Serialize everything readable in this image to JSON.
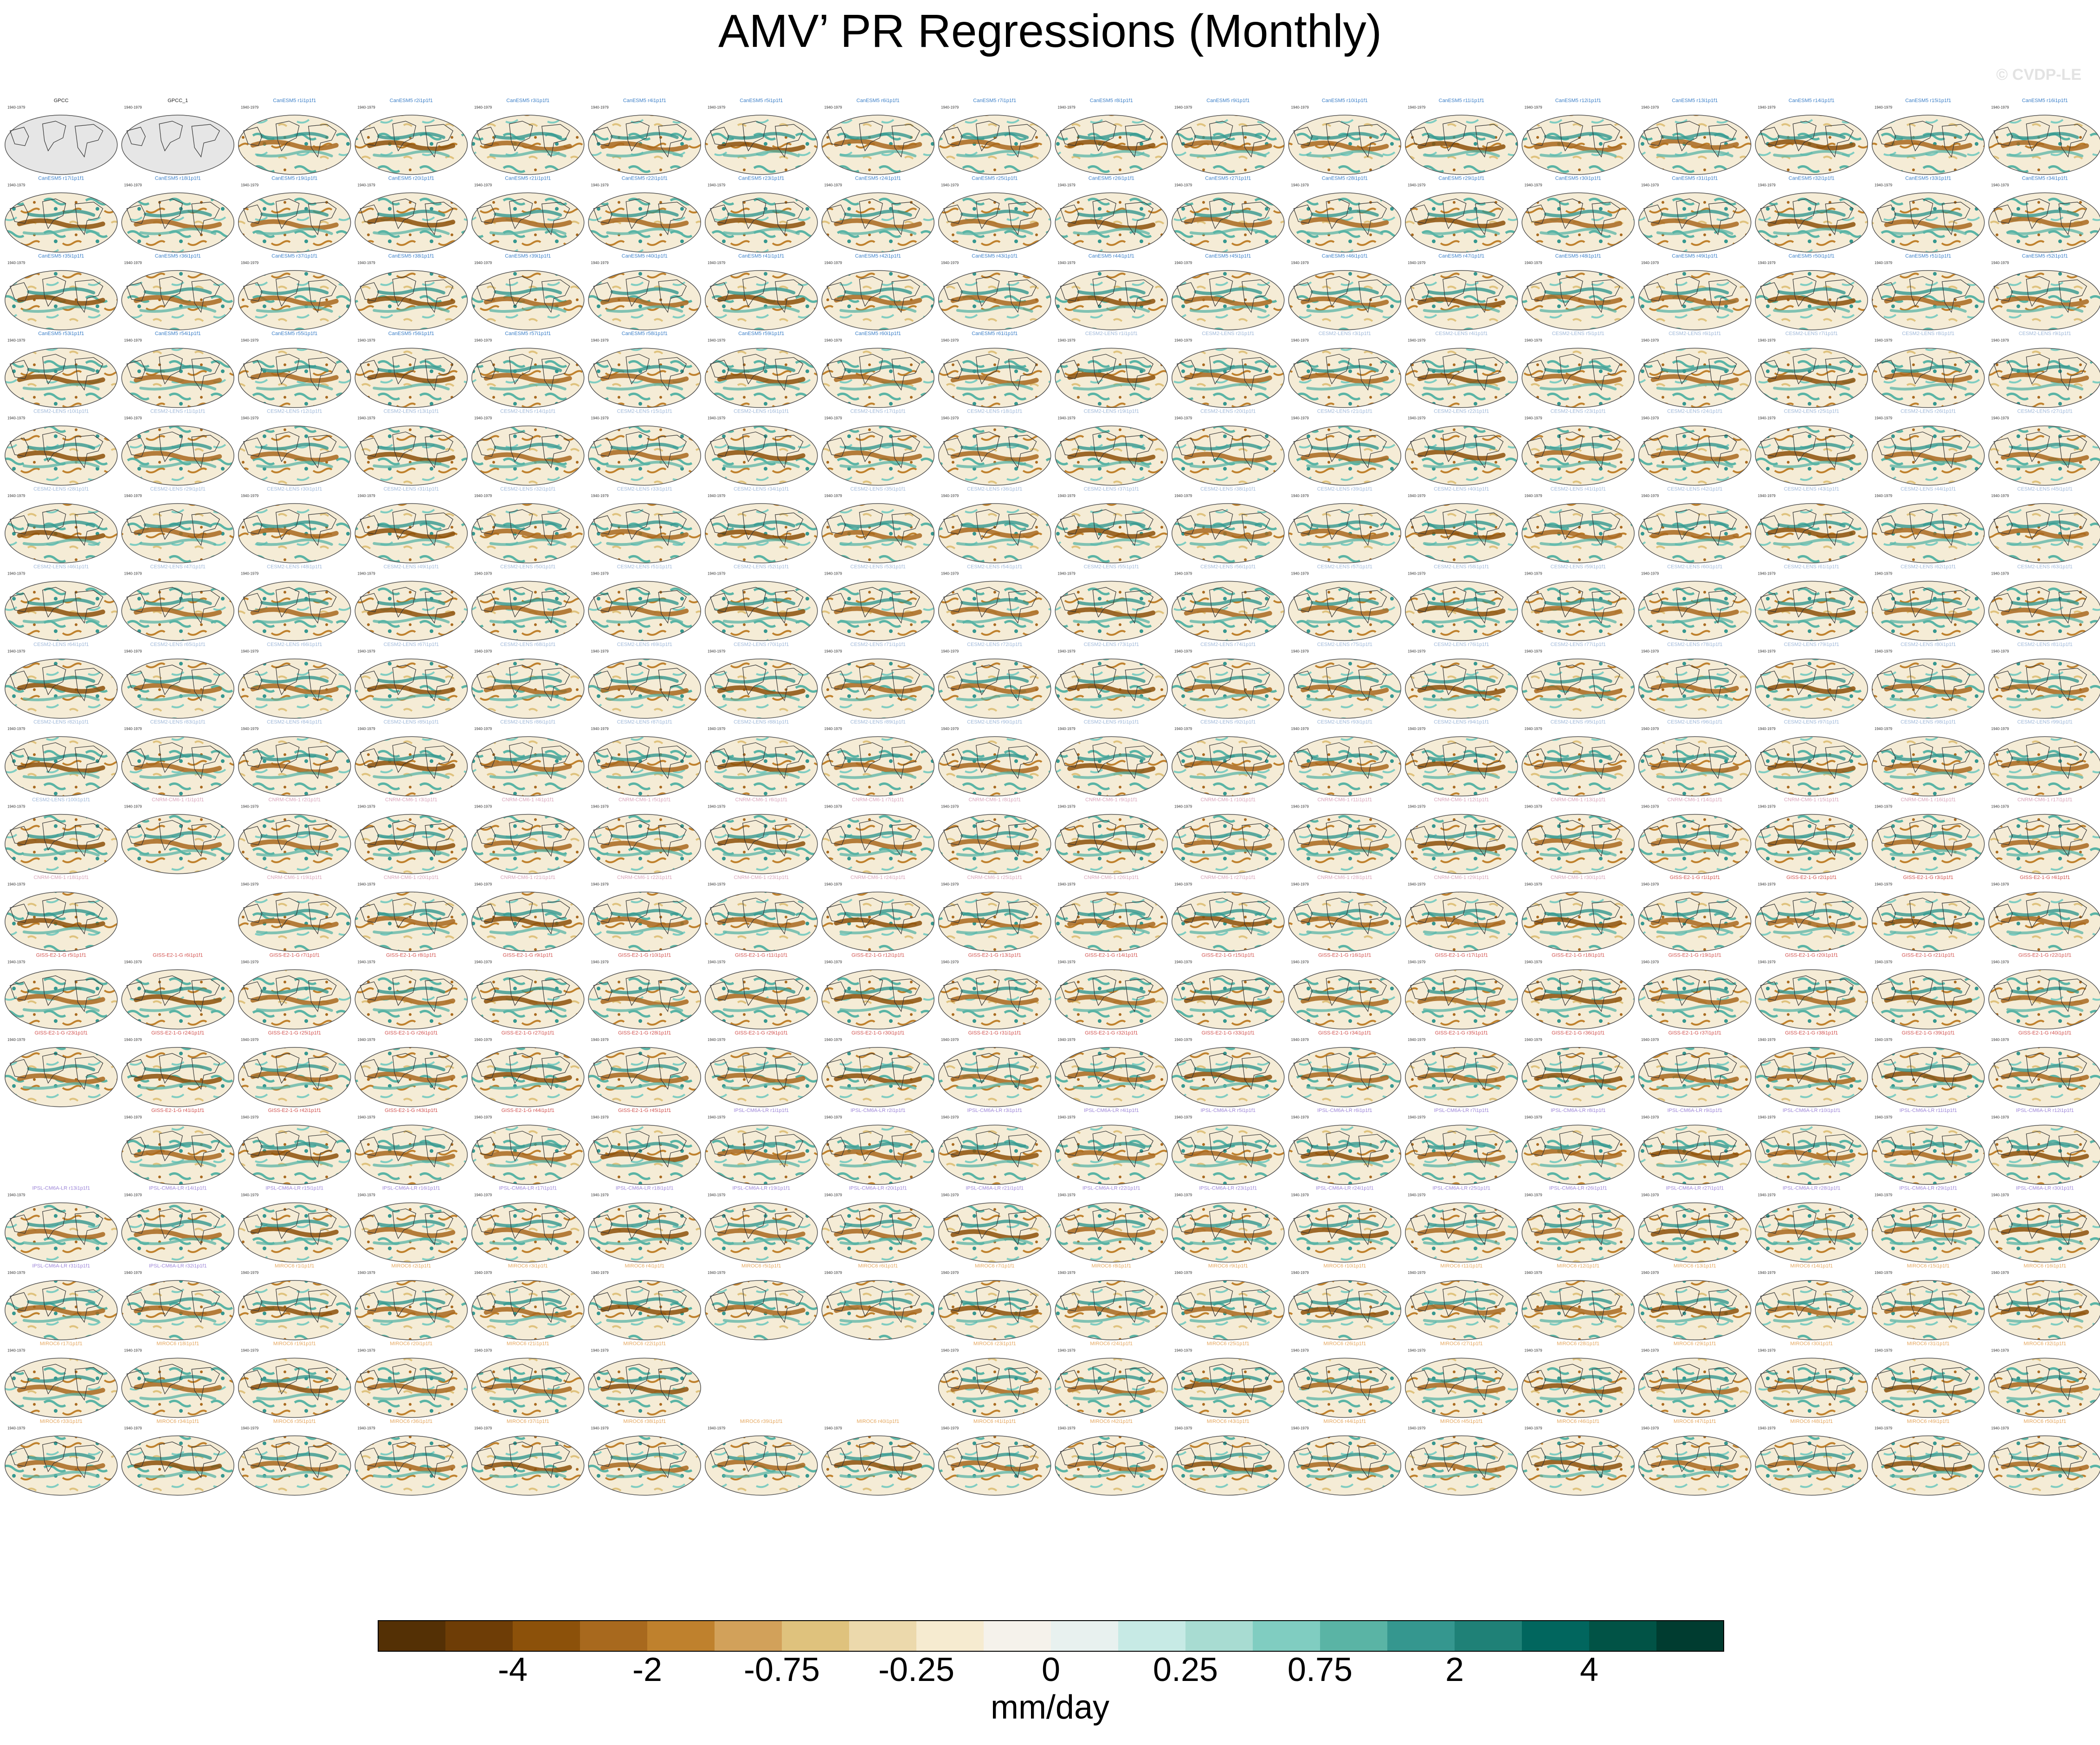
{
  "title": "AMV’ PR Regressions (Monthly)",
  "watermark": "© CVDP-LE",
  "chart_data": {
    "type": "heatmap",
    "title": "AMV’ PR Regressions (Monthly)",
    "panel_kind": "global precipitation regression map (Robinson-type projection)",
    "grid_columns": 18,
    "observation_panels": [
      {
        "name": "GPCC"
      },
      {
        "name": "GPCC_1"
      }
    ],
    "ensemble_groups": [
      {
        "model": "CanESM5",
        "label_color": "#3b7fc8",
        "members": 61
      },
      {
        "model": "CESM2-LENS",
        "label_color": "#9fb8d9",
        "members": 100
      },
      {
        "model": "CNRM-CM6-1",
        "label_color": "#d8a3b8",
        "members": 30
      },
      {
        "model": "GISS-E2-1-G",
        "label_color": "#d2524f",
        "members": 45
      },
      {
        "model": "IPSL-CM6A-LR",
        "label_color": "#9d86d8",
        "members": 32
      },
      {
        "model": "MIROC6",
        "label_color": "#e5a75e",
        "members": 50
      }
    ],
    "panel_time_label": "1940-1979",
    "colorbar": {
      "units": "mm/day",
      "tick_labels": [
        "-4",
        "-2",
        "-0.75",
        "-0.25",
        "0",
        "0.25",
        "0.75",
        "2",
        "4"
      ],
      "colors": [
        "#543005",
        "#6e3d06",
        "#8c510a",
        "#a8691e",
        "#bf812d",
        "#d2a15a",
        "#dfc27d",
        "#ecd9ac",
        "#f6ebd0",
        "#f5f2eb",
        "#e8f1ef",
        "#c7eae5",
        "#a8dcd2",
        "#80cdc1",
        "#5ab4a5",
        "#35978f",
        "#1f8177",
        "#01665e",
        "#015346",
        "#003c30"
      ]
    }
  }
}
